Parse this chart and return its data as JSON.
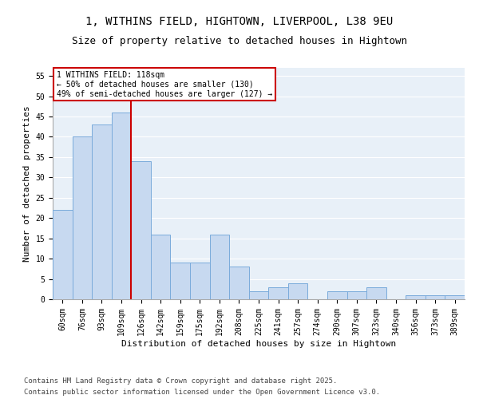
{
  "title_line1": "1, WITHINS FIELD, HIGHTOWN, LIVERPOOL, L38 9EU",
  "title_line2": "Size of property relative to detached houses in Hightown",
  "xlabel": "Distribution of detached houses by size in Hightown",
  "ylabel": "Number of detached properties",
  "categories": [
    "60sqm",
    "76sqm",
    "93sqm",
    "109sqm",
    "126sqm",
    "142sqm",
    "159sqm",
    "175sqm",
    "192sqm",
    "208sqm",
    "225sqm",
    "241sqm",
    "257sqm",
    "274sqm",
    "290sqm",
    "307sqm",
    "323sqm",
    "340sqm",
    "356sqm",
    "373sqm",
    "389sqm"
  ],
  "values": [
    22,
    40,
    43,
    46,
    34,
    16,
    9,
    9,
    16,
    8,
    2,
    3,
    4,
    0,
    2,
    2,
    3,
    0,
    1,
    1,
    1
  ],
  "bar_color": "#c7d9f0",
  "bar_edge_color": "#7aabdb",
  "redline_x": 3.5,
  "annotation_line1": "1 WITHINS FIELD: 118sqm",
  "annotation_line2": "← 50% of detached houses are smaller (130)",
  "annotation_line3": "49% of semi-detached houses are larger (127) →",
  "annotation_box_color": "#ffffff",
  "annotation_box_edge_color": "#cc0000",
  "vline_color": "#cc0000",
  "ylim": [
    0,
    57
  ],
  "yticks": [
    0,
    5,
    10,
    15,
    20,
    25,
    30,
    35,
    40,
    45,
    50,
    55
  ],
  "background_color": "#e8f0f8",
  "footer_line1": "Contains HM Land Registry data © Crown copyright and database right 2025.",
  "footer_line2": "Contains public sector information licensed under the Open Government Licence v3.0.",
  "title_fontsize": 10,
  "subtitle_fontsize": 9,
  "axis_label_fontsize": 8,
  "tick_fontsize": 7,
  "annotation_fontsize": 7,
  "footer_fontsize": 6.5
}
